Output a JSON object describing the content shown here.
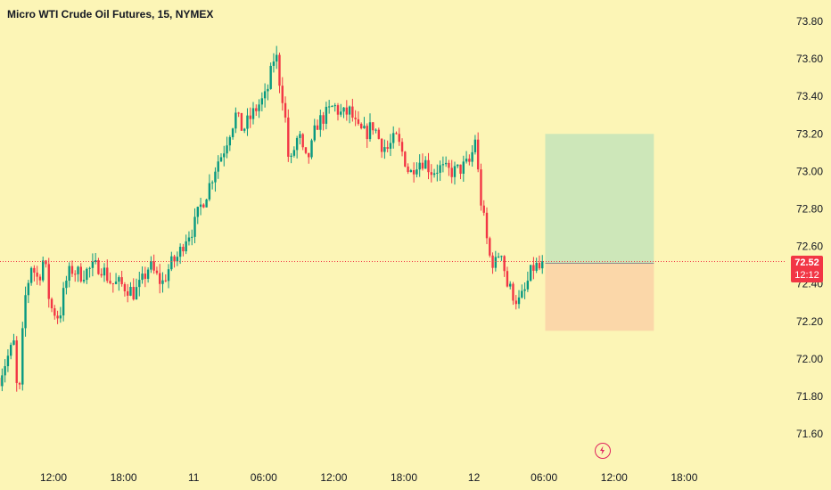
{
  "chart_data": {
    "type": "candlestick",
    "title": "Micro WTI Crude Oil Futures, 15, NYMEX",
    "ylim": [
      71.49,
      73.83
    ],
    "y_ticks": [
      "73.80",
      "73.60",
      "73.40",
      "73.20",
      "73.00",
      "72.80",
      "72.60",
      "72.40",
      "72.20",
      "72.00",
      "71.80",
      "71.60"
    ],
    "x_ticks": [
      {
        "label": "12:00",
        "t": 12
      },
      {
        "label": "18:00",
        "t": 18
      },
      {
        "label": "11",
        "t": 24
      },
      {
        "label": "06:00",
        "t": 30
      },
      {
        "label": "12:00",
        "t": 36
      },
      {
        "label": "18:00",
        "t": 42
      },
      {
        "label": "12",
        "t": 48
      },
      {
        "label": "06:00",
        "t": 54
      },
      {
        "label": "12:00",
        "t": 60
      },
      {
        "label": "18:00",
        "t": 66
      }
    ],
    "candle_interval_hours": 0.25,
    "first_candle_t": 7.35,
    "path_points": [
      [
        7.35,
        71.9
      ],
      [
        8.0,
        72.0
      ],
      [
        8.6,
        72.08
      ],
      [
        9.0,
        71.72
      ],
      [
        9.5,
        72.3
      ],
      [
        10.1,
        72.5
      ],
      [
        10.7,
        72.42
      ],
      [
        11.2,
        72.55
      ],
      [
        11.7,
        72.28
      ],
      [
        12.5,
        72.22
      ],
      [
        13.0,
        72.4
      ],
      [
        13.5,
        72.48
      ],
      [
        14.3,
        72.45
      ],
      [
        15.2,
        72.48
      ],
      [
        16.0,
        72.5
      ],
      [
        16.5,
        72.45
      ],
      [
        17.0,
        72.4
      ],
      [
        17.6,
        72.4
      ],
      [
        18.3,
        72.38
      ],
      [
        18.9,
        72.35
      ],
      [
        19.5,
        72.4
      ],
      [
        20.2,
        72.5
      ],
      [
        20.7,
        72.45
      ],
      [
        21.3,
        72.4
      ],
      [
        22.0,
        72.5
      ],
      [
        22.7,
        72.55
      ],
      [
        23.3,
        72.65
      ],
      [
        24.0,
        72.7
      ],
      [
        24.5,
        72.8
      ],
      [
        25.2,
        72.9
      ],
      [
        26.0,
        73.05
      ],
      [
        26.5,
        73.1
      ],
      [
        27.0,
        73.2
      ],
      [
        27.6,
        73.3
      ],
      [
        28.2,
        73.22
      ],
      [
        29.0,
        73.3
      ],
      [
        29.5,
        73.35
      ],
      [
        30.2,
        73.4
      ],
      [
        30.7,
        73.55
      ],
      [
        31.0,
        73.65
      ],
      [
        31.3,
        73.5
      ],
      [
        31.6,
        73.4
      ],
      [
        31.9,
        73.25
      ],
      [
        32.2,
        73.0
      ],
      [
        32.5,
        73.1
      ],
      [
        33.0,
        73.2
      ],
      [
        33.5,
        73.05
      ],
      [
        34.0,
        73.1
      ],
      [
        34.5,
        73.25
      ],
      [
        35.3,
        73.3
      ],
      [
        36.0,
        73.35
      ],
      [
        36.7,
        73.3
      ],
      [
        37.4,
        73.32
      ],
      [
        38.0,
        73.22
      ],
      [
        38.7,
        73.2
      ],
      [
        39.4,
        73.25
      ],
      [
        40.0,
        73.15
      ],
      [
        40.6,
        73.12
      ],
      [
        41.3,
        73.18
      ],
      [
        42.0,
        73.08
      ],
      [
        42.5,
        72.98
      ],
      [
        43.0,
        73.05
      ],
      [
        43.7,
        73.06
      ],
      [
        44.4,
        73.0
      ],
      [
        45.0,
        73.02
      ],
      [
        45.7,
        73.0
      ],
      [
        46.4,
        73.0
      ],
      [
        47.0,
        73.02
      ],
      [
        47.7,
        73.05
      ],
      [
        48.1,
        73.18
      ],
      [
        48.5,
        72.88
      ],
      [
        48.9,
        72.72
      ],
      [
        49.3,
        72.55
      ],
      [
        49.8,
        72.5
      ],
      [
        50.3,
        72.6
      ],
      [
        50.8,
        72.4
      ],
      [
        51.3,
        72.35
      ],
      [
        51.8,
        72.3
      ],
      [
        52.3,
        72.35
      ],
      [
        52.8,
        72.45
      ],
      [
        53.2,
        72.5
      ],
      [
        53.6,
        72.48
      ],
      [
        54.0,
        72.52
      ]
    ],
    "last_price": 72.52,
    "last_price_label": "72.52",
    "countdown_label": "12:12",
    "position": {
      "entry": 72.51,
      "target": 73.2,
      "stop": 72.15,
      "t_start": 54.1,
      "t_end": 63.4
    },
    "colors": {
      "up": "#089981",
      "down": "#f23645",
      "profit_zone": "#cde7b9",
      "loss_zone": "#fbd7a9",
      "price_line": "#f23645",
      "background": "#fcf5b6"
    }
  },
  "icons": {
    "flash": "flash-icon"
  }
}
